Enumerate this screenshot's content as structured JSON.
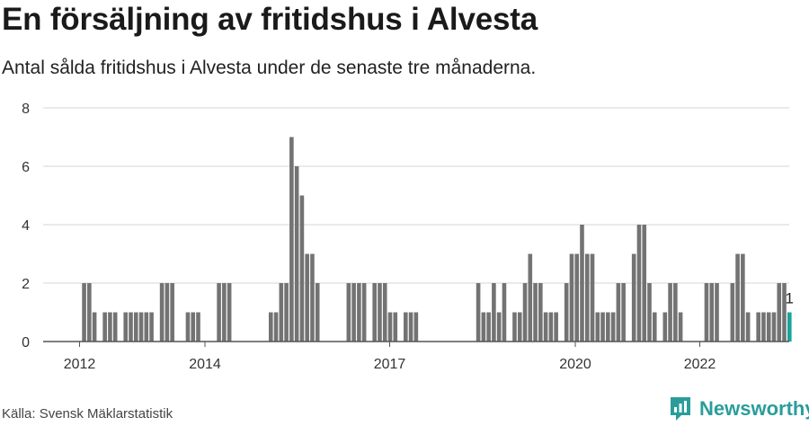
{
  "header": {
    "title": "En försäljning av fritidshus i Alvesta",
    "subtitle": "Antal sålda fritidshus i Alvesta under de senaste tre månaderna."
  },
  "footer": {
    "source": "Källa: Svensk Mäklarstatistik",
    "brand": "Newsworthy",
    "brand_icon": "newsworthy-logo-icon"
  },
  "colors": {
    "bar": "#737373",
    "highlight": "#1aa39a",
    "grid": "#d6d6d6",
    "axis": "#555555",
    "brand": "#2a9d9b"
  },
  "chart_data": {
    "type": "bar",
    "title": "En försäljning av fritidshus i Alvesta",
    "subtitle": "Antal sålda fritidshus i Alvesta under de senaste tre månaderna.",
    "xlabel": "",
    "ylabel": "",
    "ylim": [
      0,
      8
    ],
    "yticks": [
      0,
      2,
      4,
      6,
      8
    ],
    "xtick_labels": [
      "2012",
      "2014",
      "2017",
      "2020",
      "2022"
    ],
    "grid": true,
    "legend": "none",
    "highlight_last": true,
    "last_value_label": "1",
    "values": [
      0,
      2,
      2,
      1,
      0,
      1,
      1,
      1,
      0,
      1,
      1,
      1,
      1,
      1,
      1,
      0,
      2,
      2,
      2,
      0,
      0,
      1,
      1,
      1,
      0,
      0,
      0,
      2,
      2,
      2,
      0,
      0,
      0,
      0,
      0,
      0,
      0,
      1,
      1,
      2,
      2,
      7,
      6,
      5,
      3,
      3,
      2,
      0,
      0,
      0,
      0,
      0,
      2,
      2,
      2,
      2,
      0,
      2,
      2,
      2,
      1,
      1,
      0,
      1,
      1,
      1,
      0,
      0,
      0,
      0,
      0,
      0,
      0,
      0,
      0,
      0,
      0,
      2,
      1,
      1,
      2,
      1,
      2,
      0,
      1,
      1,
      2,
      3,
      2,
      2,
      1,
      1,
      1,
      0,
      2,
      3,
      3,
      4,
      3,
      3,
      1,
      1,
      1,
      1,
      2,
      2,
      0,
      3,
      4,
      4,
      2,
      1,
      0,
      1,
      2,
      2,
      1,
      0,
      0,
      0,
      0,
      2,
      2,
      2,
      0,
      0,
      2,
      3,
      3,
      1,
      0,
      1,
      1,
      1,
      1,
      2,
      2,
      1
    ]
  }
}
